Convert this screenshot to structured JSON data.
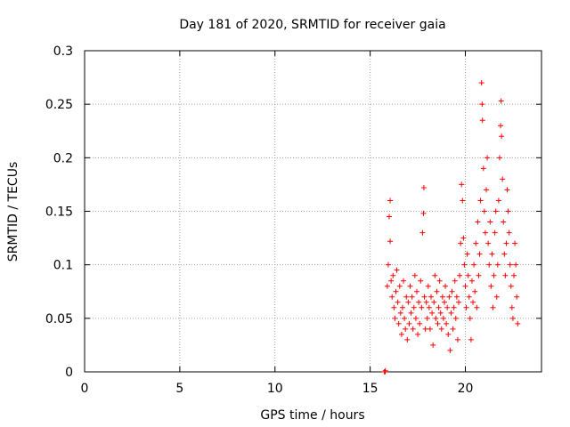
{
  "chart_data": {
    "type": "scatter",
    "title": "Day 181 of 2020, SRMTID for receiver gaia",
    "xlabel": "GPS time / hours",
    "ylabel": "SRMTID / TECUs",
    "xlim": [
      0,
      24
    ],
    "ylim": [
      0,
      0.3
    ],
    "x_ticks": [
      0,
      5,
      10,
      15,
      20
    ],
    "y_ticks": [
      0,
      0.05,
      0.1,
      0.15,
      0.2,
      0.25,
      0.3
    ],
    "x_tick_labels": [
      "0",
      "5",
      "10",
      "15",
      "20"
    ],
    "y_tick_labels": [
      "0",
      "0.05",
      "0.1",
      "0.15",
      "0.2",
      "0.25",
      "0.3"
    ],
    "grid": true,
    "marker": "+",
    "color": "#ff0000",
    "series": [
      {
        "name": "SRMTID",
        "points": [
          [
            15.75,
            0.0
          ],
          [
            15.78,
            0.0
          ],
          [
            15.8,
            0.001
          ],
          [
            15.9,
            0.08
          ],
          [
            15.95,
            0.1
          ],
          [
            16.0,
            0.145
          ],
          [
            16.05,
            0.16
          ],
          [
            16.05,
            0.122
          ],
          [
            16.1,
            0.085
          ],
          [
            16.15,
            0.07
          ],
          [
            16.2,
            0.09
          ],
          [
            16.25,
            0.06
          ],
          [
            16.3,
            0.05
          ],
          [
            16.35,
            0.075
          ],
          [
            16.4,
            0.095
          ],
          [
            16.45,
            0.065
          ],
          [
            16.5,
            0.045
          ],
          [
            16.55,
            0.08
          ],
          [
            16.6,
            0.055
          ],
          [
            16.65,
            0.035
          ],
          [
            16.7,
            0.06
          ],
          [
            16.75,
            0.085
          ],
          [
            16.8,
            0.05
          ],
          [
            16.85,
            0.04
          ],
          [
            16.9,
            0.07
          ],
          [
            16.95,
            0.03
          ],
          [
            17.0,
            0.065
          ],
          [
            17.05,
            0.045
          ],
          [
            17.1,
            0.08
          ],
          [
            17.15,
            0.055
          ],
          [
            17.2,
            0.07
          ],
          [
            17.25,
            0.04
          ],
          [
            17.3,
            0.06
          ],
          [
            17.35,
            0.09
          ],
          [
            17.4,
            0.05
          ],
          [
            17.45,
            0.075
          ],
          [
            17.5,
            0.035
          ],
          [
            17.55,
            0.065
          ],
          [
            17.6,
            0.045
          ],
          [
            17.65,
            0.085
          ],
          [
            17.7,
            0.06
          ],
          [
            17.75,
            0.13
          ],
          [
            17.8,
            0.148
          ],
          [
            17.82,
            0.172
          ],
          [
            17.85,
            0.07
          ],
          [
            17.9,
            0.04
          ],
          [
            17.95,
            0.065
          ],
          [
            18.0,
            0.05
          ],
          [
            18.05,
            0.08
          ],
          [
            18.1,
            0.06
          ],
          [
            18.15,
            0.04
          ],
          [
            18.2,
            0.07
          ],
          [
            18.25,
            0.055
          ],
          [
            18.3,
            0.025
          ],
          [
            18.35,
            0.065
          ],
          [
            18.4,
            0.09
          ],
          [
            18.45,
            0.05
          ],
          [
            18.5,
            0.075
          ],
          [
            18.55,
            0.045
          ],
          [
            18.6,
            0.06
          ],
          [
            18.65,
            0.085
          ],
          [
            18.7,
            0.055
          ],
          [
            18.75,
            0.04
          ],
          [
            18.8,
            0.07
          ],
          [
            18.85,
            0.05
          ],
          [
            18.9,
            0.065
          ],
          [
            18.95,
            0.08
          ],
          [
            19.0,
            0.045
          ],
          [
            19.05,
            0.06
          ],
          [
            19.1,
            0.035
          ],
          [
            19.15,
            0.07
          ],
          [
            19.2,
            0.02
          ],
          [
            19.25,
            0.055
          ],
          [
            19.3,
            0.075
          ],
          [
            19.35,
            0.04
          ],
          [
            19.4,
            0.06
          ],
          [
            19.45,
            0.085
          ],
          [
            19.5,
            0.05
          ],
          [
            19.55,
            0.07
          ],
          [
            19.6,
            0.03
          ],
          [
            19.65,
            0.065
          ],
          [
            19.7,
            0.09
          ],
          [
            19.75,
            0.12
          ],
          [
            19.8,
            0.175
          ],
          [
            19.85,
            0.16
          ],
          [
            19.9,
            0.125
          ],
          [
            19.95,
            0.1
          ],
          [
            20.0,
            0.08
          ],
          [
            20.05,
            0.06
          ],
          [
            20.1,
            0.11
          ],
          [
            20.15,
            0.09
          ],
          [
            20.2,
            0.07
          ],
          [
            20.25,
            0.05
          ],
          [
            20.3,
            0.03
          ],
          [
            20.35,
            0.085
          ],
          [
            20.4,
            0.065
          ],
          [
            20.45,
            0.1
          ],
          [
            20.5,
            0.075
          ],
          [
            20.55,
            0.12
          ],
          [
            20.6,
            0.06
          ],
          [
            20.65,
            0.14
          ],
          [
            20.7,
            0.09
          ],
          [
            20.75,
            0.11
          ],
          [
            20.8,
            0.16
          ],
          [
            20.85,
            0.27
          ],
          [
            20.88,
            0.25
          ],
          [
            20.9,
            0.235
          ],
          [
            20.95,
            0.19
          ],
          [
            21.0,
            0.15
          ],
          [
            21.05,
            0.13
          ],
          [
            21.1,
            0.17
          ],
          [
            21.15,
            0.2
          ],
          [
            21.2,
            0.12
          ],
          [
            21.25,
            0.1
          ],
          [
            21.3,
            0.14
          ],
          [
            21.35,
            0.08
          ],
          [
            21.4,
            0.11
          ],
          [
            21.45,
            0.06
          ],
          [
            21.5,
            0.09
          ],
          [
            21.55,
            0.13
          ],
          [
            21.6,
            0.15
          ],
          [
            21.65,
            0.07
          ],
          [
            21.7,
            0.1
          ],
          [
            21.75,
            0.16
          ],
          [
            21.8,
            0.2
          ],
          [
            21.85,
            0.23
          ],
          [
            21.88,
            0.253
          ],
          [
            21.9,
            0.22
          ],
          [
            21.95,
            0.18
          ],
          [
            22.0,
            0.14
          ],
          [
            22.05,
            0.11
          ],
          [
            22.1,
            0.09
          ],
          [
            22.15,
            0.12
          ],
          [
            22.2,
            0.17
          ],
          [
            22.25,
            0.15
          ],
          [
            22.3,
            0.13
          ],
          [
            22.35,
            0.1
          ],
          [
            22.4,
            0.08
          ],
          [
            22.45,
            0.06
          ],
          [
            22.5,
            0.05
          ],
          [
            22.55,
            0.09
          ],
          [
            22.6,
            0.12
          ],
          [
            22.65,
            0.1
          ],
          [
            22.7,
            0.07
          ],
          [
            22.75,
            0.045
          ]
        ]
      }
    ]
  }
}
